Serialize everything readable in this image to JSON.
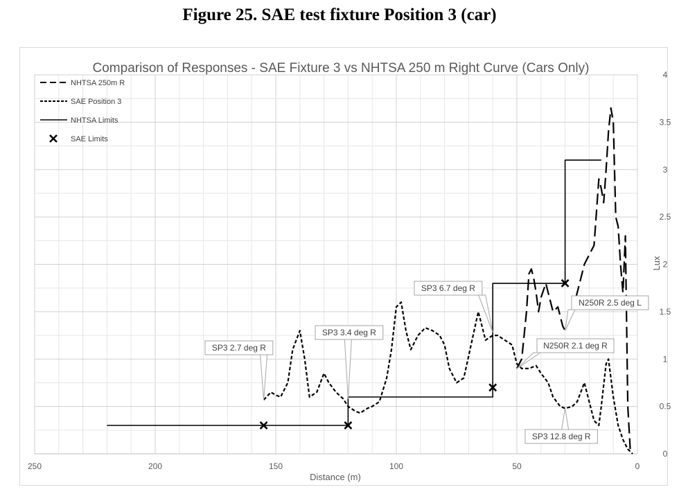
{
  "figure_title": "Figure 25. SAE test fixture Position 3 (car)",
  "chart_data": {
    "type": "line",
    "title": "Comparison of Responses - SAE Fixture 3 vs NHTSA 250 m Right Curve (Cars Only)",
    "xlabel": "Distance (m)",
    "ylabel": "Lux",
    "xlim": [
      250,
      0
    ],
    "ylim": [
      0,
      4
    ],
    "x_ticks": [
      "250",
      "200",
      "150",
      "100",
      "50",
      "0"
    ],
    "y_ticks": [
      "0",
      "0.5",
      "1",
      "1.5",
      "2",
      "2.5",
      "3",
      "3.5",
      "4"
    ],
    "grid": true,
    "legend_position": "top-left",
    "legend": [
      {
        "label": "NHTSA 250m R",
        "style": "long-dash"
      },
      {
        "label": "SAE Position 3",
        "style": "short-dash"
      },
      {
        "label": "NHTSA Limits",
        "style": "solid"
      },
      {
        "label": "SAE Limits",
        "style": "x-marker"
      }
    ],
    "series": [
      {
        "name": "NHTSA 250m R",
        "style": "long-dash",
        "x": [
          50,
          48,
          46,
          45,
          44,
          43,
          42,
          41,
          40,
          38,
          37,
          35,
          33,
          31,
          30,
          28,
          26,
          24,
          22,
          20,
          18,
          16,
          15,
          14,
          13,
          12,
          11,
          10,
          9,
          8,
          7,
          6,
          5,
          4,
          3
        ],
        "y": [
          0.9,
          1.0,
          1.5,
          1.9,
          1.95,
          1.85,
          1.7,
          1.5,
          1.65,
          1.8,
          1.7,
          1.5,
          1.55,
          1.35,
          1.3,
          1.45,
          1.6,
          1.8,
          2.0,
          2.1,
          2.2,
          2.9,
          2.8,
          2.65,
          3.0,
          3.4,
          3.65,
          3.5,
          2.5,
          2.4,
          2.0,
          1.7,
          2.3,
          0.5,
          0.05
        ]
      },
      {
        "name": "SAE Position 3",
        "style": "short-dash",
        "x": [
          155,
          152,
          150,
          148,
          145,
          143,
          140,
          138,
          136,
          133,
          130,
          128,
          125,
          122,
          120,
          117,
          115,
          112,
          110,
          107,
          104,
          102,
          100,
          98,
          96,
          94,
          91,
          88,
          85,
          82,
          80,
          78,
          75,
          72,
          69,
          66,
          63,
          60,
          58,
          55,
          52,
          50,
          48,
          45,
          42,
          40,
          37,
          35,
          32,
          30,
          27,
          25,
          22,
          20,
          18,
          16,
          15,
          13,
          12,
          10,
          8,
          6,
          4,
          2
        ],
        "y": [
          0.57,
          0.65,
          0.62,
          0.6,
          0.75,
          1.1,
          1.3,
          1.0,
          0.6,
          0.65,
          0.85,
          0.75,
          0.65,
          0.58,
          0.5,
          0.45,
          0.43,
          0.48,
          0.5,
          0.55,
          0.8,
          1.1,
          1.55,
          1.6,
          1.3,
          1.1,
          1.25,
          1.33,
          1.3,
          1.25,
          1.15,
          0.9,
          0.75,
          0.8,
          1.15,
          1.5,
          1.2,
          1.25,
          1.25,
          1.2,
          1.15,
          0.95,
          0.9,
          0.9,
          0.93,
          0.85,
          0.75,
          0.6,
          0.5,
          0.48,
          0.5,
          0.55,
          0.75,
          0.55,
          0.35,
          0.3,
          0.5,
          0.95,
          1.0,
          0.6,
          0.3,
          0.15,
          0.05,
          0.0
        ]
      },
      {
        "name": "NHTSA Limits",
        "style": "solid",
        "x": [
          220,
          120,
          120,
          60,
          60,
          30,
          30,
          15
        ],
        "y": [
          0.3,
          0.3,
          0.6,
          0.6,
          1.8,
          1.8,
          3.1,
          3.1
        ]
      },
      {
        "name": "SAE Limits",
        "style": "x-marker",
        "x": [
          155,
          120,
          60,
          30
        ],
        "y": [
          0.3,
          0.3,
          0.7,
          1.8
        ]
      }
    ],
    "annotations": [
      {
        "text": "SP3 2.7 deg R",
        "x": 155,
        "y": 0.57
      },
      {
        "text": "SP3 3.4 deg R",
        "x": 120,
        "y": 0.58
      },
      {
        "text": "SP3 6.7 deg R",
        "x": 60,
        "y": 1.28
      },
      {
        "text": "N250R 2.1 deg R",
        "x": 50,
        "y": 0.9
      },
      {
        "text": "N250R 2.5 deg L",
        "x": 30,
        "y": 1.3
      },
      {
        "text": "SP3 12.8 deg R",
        "x": 30,
        "y": 0.48
      }
    ]
  }
}
